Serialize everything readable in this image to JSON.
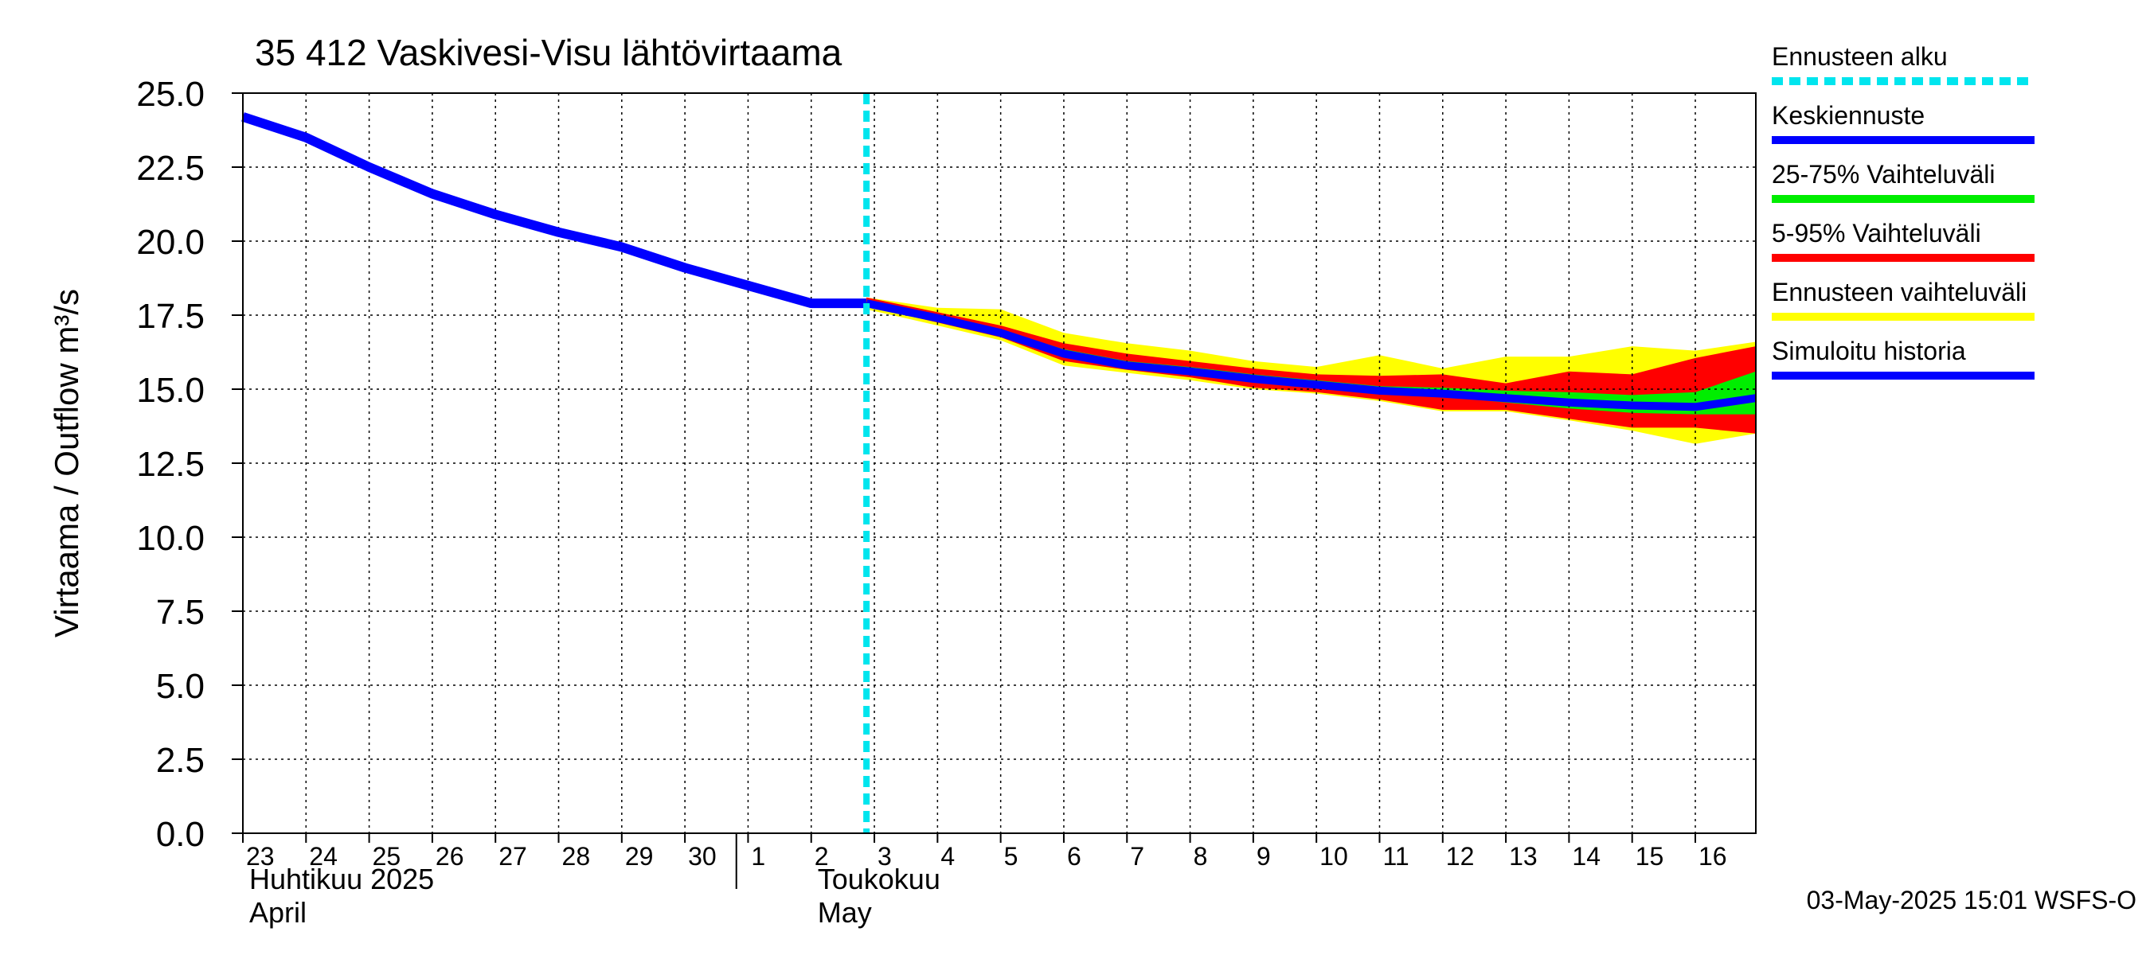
{
  "chart_data": {
    "type": "line",
    "title": "35 412 Vaskivesi-Visu lähtövirtaama",
    "ylabel": "Virtaama / Outflow    m³/s",
    "ylim": [
      0,
      25
    ],
    "yticks": [
      "0.0",
      "2.5",
      "5.0",
      "7.5",
      "10.0",
      "12.5",
      "15.0",
      "17.5",
      "20.0",
      "22.5",
      "25.0"
    ],
    "xlim": [
      "2025-04-23",
      "2025-05-16T23:00"
    ],
    "day_labels": [
      "23",
      "24",
      "25",
      "26",
      "27",
      "28",
      "29",
      "30",
      "1",
      "2",
      "3",
      "4",
      "5",
      "6",
      "7",
      "8",
      "9",
      "10",
      "11",
      "12",
      "13",
      "14",
      "15",
      "16"
    ],
    "month_labels": [
      {
        "fi": "Huhtikuu  2025",
        "en": "April",
        "start": "2025-04-23"
      },
      {
        "fi": "Toukokuu",
        "en": "May",
        "start": "2025-05-02"
      }
    ],
    "forecast_start": "2025-05-02T21:00",
    "simulated_history": {
      "x": [
        "2025-04-23",
        "2025-04-24",
        "2025-04-25",
        "2025-04-26",
        "2025-04-27",
        "2025-04-28",
        "2025-04-29",
        "2025-04-30",
        "2025-05-01",
        "2025-05-02",
        "2025-05-02T21:00"
      ],
      "y": [
        24.2,
        23.5,
        22.5,
        21.6,
        20.9,
        20.3,
        19.8,
        19.1,
        18.5,
        17.9,
        17.9
      ]
    },
    "forecast_x": [
      "2025-05-02T21:00",
      "2025-05-04",
      "2025-05-05",
      "2025-05-06",
      "2025-05-07",
      "2025-05-08",
      "2025-05-09",
      "2025-05-10",
      "2025-05-11",
      "2025-05-12",
      "2025-05-13",
      "2025-05-14",
      "2025-05-15",
      "2025-05-16",
      "2025-05-16T23:00"
    ],
    "mean_forecast": [
      17.9,
      17.4,
      16.9,
      16.2,
      15.8,
      15.6,
      15.35,
      15.15,
      14.95,
      14.85,
      14.7,
      14.55,
      14.45,
      14.4,
      14.7
    ],
    "range_25_75": {
      "low": [
        17.85,
        17.35,
        16.85,
        16.15,
        15.75,
        15.5,
        15.25,
        15.05,
        14.85,
        14.75,
        14.55,
        14.35,
        14.2,
        14.15,
        14.15
      ],
      "high": [
        17.95,
        17.5,
        17.0,
        16.35,
        15.95,
        15.75,
        15.5,
        15.3,
        15.1,
        15.05,
        14.95,
        14.9,
        14.8,
        14.9,
        15.6
      ]
    },
    "range_5_95": {
      "low": [
        17.8,
        17.25,
        16.75,
        15.95,
        15.65,
        15.4,
        15.05,
        14.9,
        14.65,
        14.3,
        14.3,
        14.0,
        13.7,
        13.7,
        13.5
      ],
      "high": [
        18.1,
        17.6,
        17.15,
        16.55,
        16.2,
        15.95,
        15.7,
        15.5,
        15.45,
        15.5,
        15.2,
        15.6,
        15.5,
        16.05,
        16.45
      ]
    },
    "forecast_range": {
      "low": [
        17.7,
        17.15,
        16.65,
        15.8,
        15.55,
        15.3,
        15.0,
        14.85,
        14.6,
        14.25,
        14.25,
        13.95,
        13.6,
        13.15,
        13.5
      ],
      "high": [
        18.1,
        17.75,
        17.7,
        16.9,
        16.55,
        16.3,
        15.95,
        15.75,
        16.15,
        15.7,
        16.1,
        16.1,
        16.45,
        16.3,
        16.6
      ]
    },
    "grid": true,
    "legend_placement": "right"
  },
  "legend": [
    {
      "label": "Ennusteen alku",
      "color": "#00e5ee",
      "style": "dashed"
    },
    {
      "label": "Keskiennuste",
      "color": "#0000ff",
      "style": "solid"
    },
    {
      "label": "25-75% Vaihteluväli",
      "color": "#00ee00",
      "style": "solid"
    },
    {
      "label": "5-95% Vaihteluväli",
      "color": "#ff0000",
      "style": "solid"
    },
    {
      "label": "Ennusteen vaihteluväli",
      "color": "#ffff00",
      "style": "solid"
    },
    {
      "label": "Simuloitu historia",
      "color": "#0000ff",
      "style": "solid"
    }
  ],
  "colors": {
    "forecast_start": "#00e5ee",
    "mean": "#0000ff",
    "history": "#0000ff",
    "range_25_75": "#00ee00",
    "range_5_95": "#ff0000",
    "forecast_range": "#ffff00"
  },
  "footer": "03-May-2025 15:01 WSFS-O"
}
